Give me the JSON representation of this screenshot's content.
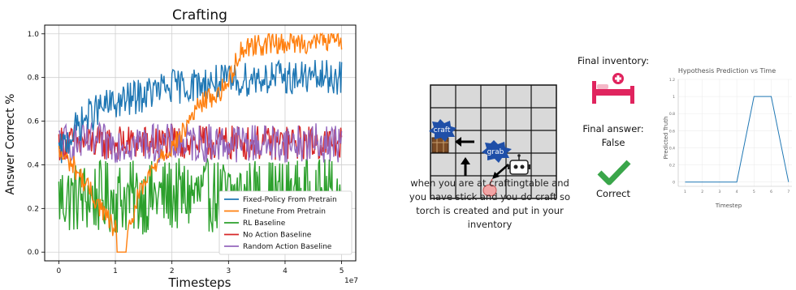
{
  "main_chart": {
    "title": "Crafting",
    "xlabel": "Timesteps",
    "ylabel": "Answer Correct %",
    "x_exponent": "1e7",
    "legend": [
      {
        "label": "Fixed-Policy From Pretrain",
        "color": "#1f77b4"
      },
      {
        "label": "Finetune From Pretrain",
        "color": "#ff7f0e"
      },
      {
        "label": "RL Baseline",
        "color": "#2ca02c"
      },
      {
        "label": "No Action Baseline",
        "color": "#d62728"
      },
      {
        "label": "Random Action Baseline",
        "color": "#9467bd"
      }
    ]
  },
  "chart_data": [
    {
      "type": "line",
      "title": "Crafting",
      "xlabel": "Timesteps",
      "ylabel": "Answer Correct %",
      "x_scale_note": "1e7",
      "xlim": [
        -0.25,
        5.25
      ],
      "ylim": [
        -0.04,
        1.04
      ],
      "xticks": [
        0,
        1,
        2,
        3,
        4,
        5
      ],
      "yticks": [
        0.0,
        0.2,
        0.4,
        0.6,
        0.8,
        1.0
      ],
      "grid": true,
      "legend_position": "lower-right",
      "series": [
        {
          "name": "Fixed-Policy From Pretrain",
          "color": "#1f77b4",
          "x": [
            0,
            0.25,
            0.5,
            0.75,
            1.0,
            1.25,
            1.5,
            1.75,
            2.0,
            2.25,
            2.5,
            2.75,
            3.0,
            3.25,
            3.5,
            3.75,
            4.0,
            4.25,
            4.5,
            4.75,
            5.0
          ],
          "y": [
            0.45,
            0.55,
            0.62,
            0.66,
            0.68,
            0.7,
            0.72,
            0.74,
            0.76,
            0.76,
            0.77,
            0.78,
            0.78,
            0.79,
            0.8,
            0.8,
            0.8,
            0.8,
            0.8,
            0.8,
            0.8
          ]
        },
        {
          "name": "Finetune From Pretrain",
          "color": "#ff7f0e",
          "x": [
            0,
            0.25,
            0.5,
            0.75,
            1.0,
            1.05,
            1.15,
            1.25,
            1.4,
            1.6,
            1.8,
            2.0,
            2.2,
            2.4,
            2.6,
            2.8,
            3.0,
            3.2,
            3.4,
            3.6,
            3.8,
            4.0,
            4.2,
            4.4,
            4.6,
            4.8,
            5.0
          ],
          "y": [
            0.45,
            0.4,
            0.3,
            0.2,
            0.1,
            0.0,
            0.0,
            0.1,
            0.25,
            0.35,
            0.45,
            0.48,
            0.55,
            0.65,
            0.7,
            0.72,
            0.78,
            0.92,
            0.95,
            0.95,
            0.96,
            0.96,
            0.96,
            0.96,
            0.97,
            0.97,
            0.97
          ]
        },
        {
          "name": "RL Baseline",
          "color": "#2ca02c",
          "x": [
            0,
            0.5,
            1.0,
            1.5,
            2.0,
            2.5,
            3.0,
            3.5,
            4.0,
            4.5,
            5.0
          ],
          "y": [
            0.25,
            0.25,
            0.25,
            0.25,
            0.26,
            0.26,
            0.26,
            0.26,
            0.26,
            0.26,
            0.26
          ]
        },
        {
          "name": "No Action Baseline",
          "color": "#d62728",
          "x": [
            0,
            0.5,
            1.0,
            1.5,
            2.0,
            2.5,
            3.0,
            3.5,
            4.0,
            4.5,
            5.0
          ],
          "y": [
            0.5,
            0.5,
            0.5,
            0.5,
            0.5,
            0.5,
            0.5,
            0.5,
            0.5,
            0.5,
            0.5
          ]
        },
        {
          "name": "Random Action Baseline",
          "color": "#9467bd",
          "x": [
            0,
            0.5,
            1.0,
            1.5,
            2.0,
            2.5,
            3.0,
            3.5,
            4.0,
            4.5,
            5.0
          ],
          "y": [
            0.5,
            0.5,
            0.5,
            0.5,
            0.5,
            0.5,
            0.5,
            0.5,
            0.5,
            0.5,
            0.5
          ]
        }
      ]
    },
    {
      "type": "line",
      "title": "Hypothesis Prediction vs Time",
      "xlabel": "Timestep",
      "ylabel": "Predicted Truth",
      "xticks": [
        1,
        2,
        3,
        4,
        5,
        6,
        7
      ],
      "yticks": [
        0,
        0.2,
        0.4,
        0.6,
        0.8,
        1,
        1.2
      ],
      "xlim": [
        0.6,
        7.2
      ],
      "ylim": [
        -0.05,
        1.2
      ],
      "grid": true,
      "series": [
        {
          "name": "",
          "color": "#1f77b4",
          "x": [
            1,
            2,
            3,
            4,
            5,
            6,
            7
          ],
          "y": [
            0,
            0,
            0,
            0,
            1,
            1,
            0
          ]
        }
      ]
    }
  ],
  "env": {
    "grab_label": "grab",
    "craft_label": "craft",
    "caption_lines": [
      "when you are at craftingtable and",
      "you have stick and you do craft so",
      "torch is created and put in your",
      "inventory"
    ]
  },
  "inventory": {
    "final_inventory_label": "Final inventory:",
    "final_answer_label": "Final answer:",
    "final_answer_value": "False",
    "result_label": "Correct",
    "colors": {
      "bed": "#e0245e",
      "check": "#3aa64a"
    },
    "icons": [
      "bed-icon",
      "check-icon"
    ]
  }
}
